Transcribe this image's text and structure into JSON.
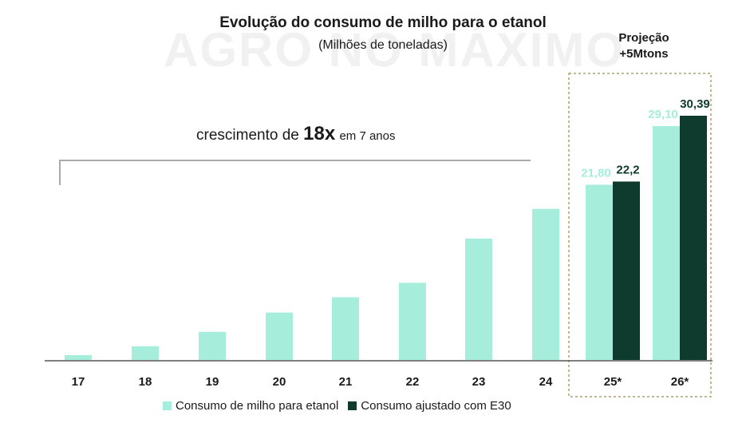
{
  "watermark": "AGRO NO MÁXIMO",
  "projection": {
    "line1": "Projeção",
    "line2": "+5Mtons"
  },
  "growth_note": {
    "prefix": "crescimento de",
    "highlight": "18x",
    "suffix": "em 7 anos"
  },
  "colors": {
    "series1": "#a6eedb",
    "series2": "#0e3b2e",
    "label1": "#a6eedb",
    "label2": "#0e3b2e",
    "axis": "#555555",
    "projection_box": "#b3a15e",
    "bracket": "#aaaaaa"
  },
  "chart_data": {
    "type": "bar",
    "title": "Evolução do consumo de milho para o etanol",
    "subtitle": "(Milhões de toneladas)",
    "categories": [
      "17",
      "18",
      "19",
      "20",
      "21",
      "22",
      "23",
      "24",
      "25*",
      "26*"
    ],
    "ylim": [
      0,
      32
    ],
    "series": [
      {
        "name": "Consumo de milho para etanol",
        "values": [
          0.6,
          1.7,
          3.5,
          5.9,
          7.8,
          9.6,
          15.1,
          18.8,
          21.8,
          29.1
        ],
        "labels": [
          "",
          "",
          "",
          "",
          "",
          "",
          "",
          "",
          "21,80",
          "29,10"
        ]
      },
      {
        "name": "Consumo ajustado com E30",
        "values": [
          null,
          null,
          null,
          null,
          null,
          null,
          null,
          null,
          22.2,
          30.39
        ],
        "labels": [
          "",
          "",
          "",
          "",
          "",
          "",
          "",
          "",
          "22,2",
          "30,39"
        ]
      }
    ],
    "grid": false,
    "legend_position": "bottom"
  }
}
